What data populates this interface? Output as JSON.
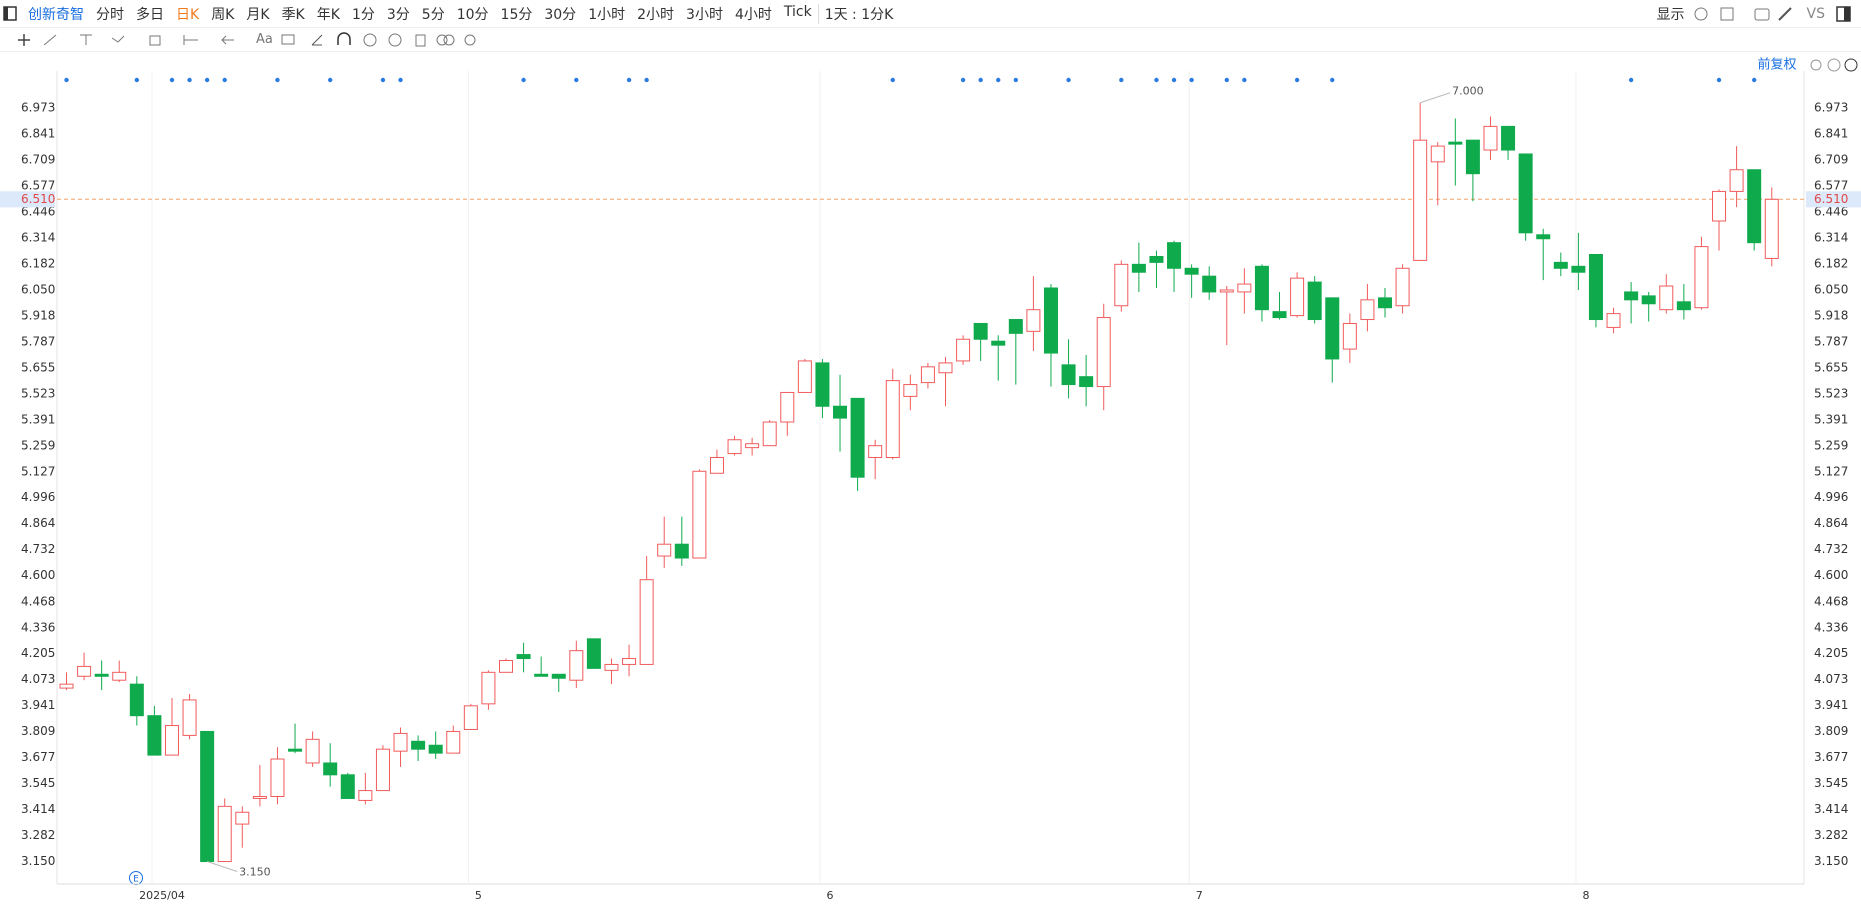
{
  "toolbar": {
    "stock": "创新奇智",
    "periods": [
      "分时",
      "多日",
      "日K",
      "周K",
      "月K",
      "季K",
      "年K",
      "1分",
      "3分",
      "5分",
      "10分",
      "15分",
      "30分",
      "1小时",
      "2小时",
      "3小时",
      "4小时",
      "Tick"
    ],
    "selected": 2,
    "period_setting": "1天 : 1分K",
    "display": "显示",
    "compare": "VS"
  },
  "drawing_toolbar": {
    "font": "Aa"
  },
  "adjust": "前复权",
  "event_marker": "E",
  "chart_data": {
    "type": "candlestick",
    "categories": [
      null,
      null,
      null,
      null,
      null,
      null,
      "2025/04",
      null,
      null,
      null,
      null,
      null,
      null,
      null,
      null,
      null,
      null,
      null,
      null,
      null,
      null,
      null,
      null,
      null,
      "5",
      null,
      null,
      null,
      null,
      null,
      null,
      null,
      null,
      null,
      null,
      null,
      null,
      null,
      null,
      null,
      null,
      null,
      null,
      null,
      "6",
      null,
      null,
      null,
      null,
      null,
      null,
      null,
      null,
      null,
      null,
      null,
      null,
      null,
      null,
      null,
      null,
      null,
      null,
      null,
      null,
      "7",
      null,
      null,
      null,
      null,
      null,
      null,
      null,
      null,
      null,
      null,
      null,
      null,
      null,
      null,
      null,
      null,
      null,
      null,
      null,
      null,
      null,
      "8",
      null,
      null,
      null,
      null,
      null,
      null,
      null,
      null,
      null,
      null
    ],
    "open": [
      4.03,
      4.09,
      4.1,
      4.07,
      4.05,
      3.89,
      3.69,
      3.79,
      3.81,
      3.15,
      3.34,
      3.47,
      3.48,
      3.72,
      3.65,
      3.65,
      3.59,
      3.46,
      3.51,
      3.71,
      3.76,
      3.74,
      3.7,
      3.82,
      3.95,
      4.11,
      4.2,
      4.1,
      4.1,
      4.07,
      4.28,
      4.12,
      4.15,
      4.15,
      4.7,
      4.76,
      4.69,
      5.12,
      5.22,
      5.25,
      5.26,
      5.38,
      5.53,
      5.68,
      5.46,
      5.5,
      5.2,
      5.2,
      5.51,
      5.58,
      5.63,
      5.69,
      5.88,
      5.79,
      5.9,
      5.84,
      6.06,
      5.67,
      5.61,
      5.56,
      5.97,
      6.18,
      6.22,
      6.29,
      6.16,
      6.12,
      6.04,
      6.04,
      6.17,
      5.94,
      5.92,
      6.09,
      6.01,
      5.75,
      5.9,
      6.01,
      5.97,
      6.2,
      6.7,
      6.8,
      6.81,
      6.76,
      6.88,
      6.74,
      6.33,
      6.19,
      6.17,
      6.23,
      5.86,
      6.04,
      6.02,
      5.95,
      5.99,
      5.96,
      6.4,
      6.55,
      6.66,
      6.21
    ],
    "high": [
      4.11,
      4.21,
      4.17,
      4.17,
      4.09,
      3.94,
      3.98,
      4.0,
      3.81,
      3.47,
      3.43,
      3.64,
      3.73,
      3.85,
      3.81,
      3.75,
      3.6,
      3.6,
      3.74,
      3.83,
      3.79,
      3.81,
      3.84,
      3.95,
      4.12,
      4.18,
      4.26,
      4.19,
      4.1,
      4.27,
      4.28,
      4.18,
      4.25,
      4.7,
      4.9,
      4.9,
      5.14,
      5.24,
      5.31,
      5.3,
      5.39,
      5.53,
      5.7,
      5.7,
      5.62,
      5.5,
      5.29,
      5.65,
      5.62,
      5.68,
      5.71,
      5.82,
      5.88,
      5.82,
      5.9,
      6.12,
      6.08,
      5.8,
      5.72,
      5.98,
      6.2,
      6.29,
      6.25,
      6.3,
      6.18,
      6.17,
      6.07,
      6.16,
      6.18,
      6.04,
      6.14,
      6.12,
      6.01,
      5.93,
      6.08,
      6.06,
      6.18,
      7.0,
      6.8,
      6.92,
      6.81,
      6.93,
      6.88,
      6.74,
      6.36,
      6.24,
      6.34,
      6.23,
      5.96,
      6.09,
      6.04,
      6.13,
      6.08,
      6.32,
      6.56,
      6.78,
      6.66,
      6.57
    ],
    "low": [
      4.02,
      4.07,
      4.02,
      4.06,
      3.84,
      3.69,
      3.69,
      3.77,
      3.15,
      3.15,
      3.22,
      3.43,
      3.44,
      3.7,
      3.63,
      3.53,
      3.47,
      3.44,
      3.51,
      3.63,
      3.66,
      3.67,
      3.7,
      3.82,
      3.92,
      4.11,
      4.11,
      4.09,
      4.01,
      4.03,
      4.13,
      4.05,
      4.09,
      4.15,
      4.64,
      4.65,
      4.69,
      5.12,
      5.21,
      5.21,
      5.26,
      5.31,
      5.53,
      5.4,
      5.23,
      5.03,
      5.09,
      5.19,
      5.44,
      5.55,
      5.46,
      5.67,
      5.69,
      5.59,
      5.57,
      5.74,
      5.56,
      5.5,
      5.46,
      5.44,
      5.94,
      6.04,
      6.06,
      6.04,
      6.01,
      6.0,
      5.77,
      5.93,
      5.89,
      5.9,
      5.91,
      5.88,
      5.58,
      5.68,
      5.84,
      5.91,
      5.93,
      6.2,
      6.48,
      6.58,
      6.5,
      6.71,
      6.71,
      6.3,
      6.1,
      6.12,
      6.05,
      5.86,
      5.83,
      5.88,
      5.89,
      5.93,
      5.9,
      5.95,
      6.25,
      6.47,
      6.25,
      6.17
    ],
    "close": [
      4.05,
      4.14,
      4.09,
      4.11,
      3.89,
      3.69,
      3.84,
      3.97,
      3.15,
      3.43,
      3.4,
      3.48,
      3.67,
      3.71,
      3.77,
      3.59,
      3.47,
      3.51,
      3.72,
      3.8,
      3.72,
      3.7,
      3.81,
      3.94,
      4.11,
      4.17,
      4.18,
      4.09,
      4.08,
      4.22,
      4.13,
      4.15,
      4.18,
      4.58,
      4.76,
      4.69,
      5.13,
      5.2,
      5.29,
      5.27,
      5.38,
      5.53,
      5.69,
      5.46,
      5.4,
      5.1,
      5.26,
      5.59,
      5.57,
      5.66,
      5.68,
      5.8,
      5.8,
      5.77,
      5.83,
      5.95,
      5.73,
      5.57,
      5.56,
      5.91,
      6.18,
      6.14,
      6.19,
      6.16,
      6.13,
      6.04,
      6.05,
      6.08,
      5.95,
      5.91,
      6.11,
      5.9,
      5.7,
      5.88,
      6.0,
      5.96,
      6.16,
      6.81,
      6.78,
      6.79,
      6.64,
      6.88,
      6.76,
      6.34,
      6.31,
      6.16,
      6.14,
      5.9,
      5.93,
      6.0,
      5.98,
      6.07,
      5.95,
      6.27,
      6.55,
      6.66,
      6.29,
      6.51
    ],
    "up_color": "#f15b5b",
    "down_color": "#0eaa4c",
    "ylim": [
      3.036,
      7.161
    ],
    "yticks": [
      {
        "value": 3.15,
        "label": "3.150"
      },
      3.282,
      3.414,
      3.545,
      3.677,
      3.809,
      3.941,
      4.073,
      4.205,
      4.336,
      4.468,
      {
        "value": 4.6,
        "label": "4.600"
      },
      4.732,
      4.864,
      4.996,
      5.127,
      5.259,
      5.391,
      5.523,
      5.655,
      5.787,
      5.918,
      {
        "value": 6.05,
        "label": "6.050"
      },
      6.182,
      6.314,
      6.446,
      6.577,
      6.709,
      6.841,
      6.973
    ],
    "last_price": {
      "value": 6.51,
      "label": "6.510"
    },
    "high_label": {
      "value": 7.0,
      "label": "7.000"
    },
    "low_label": {
      "value": 3.15,
      "label": "3.150"
    },
    "grid": "vertical"
  }
}
